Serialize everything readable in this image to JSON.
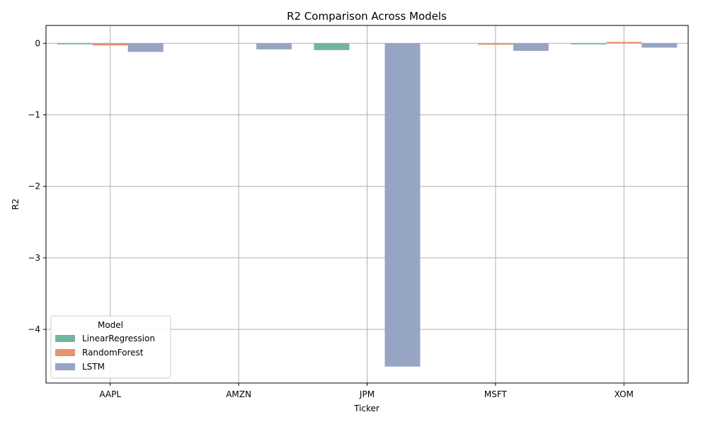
{
  "chart_data": {
    "type": "bar",
    "title": "R2 Comparison Across Models",
    "xlabel": "Ticker",
    "ylabel": "R2",
    "categories": [
      "AAPL",
      "AMZN",
      "JPM",
      "MSFT",
      "XOM"
    ],
    "ylim": [
      -4.75,
      0.25
    ],
    "yticks": [
      0,
      -1,
      -2,
      -3,
      -4
    ],
    "ytick_labels": [
      "0",
      "−1",
      "−2",
      "−3",
      "−4"
    ],
    "grid": true,
    "legend": {
      "title": "Model",
      "placement": "lower-left"
    },
    "series": [
      {
        "name": "LinearRegression",
        "color": "#72b59e",
        "values": [
          -0.015,
          0.0,
          -0.095,
          0.0,
          -0.015
        ]
      },
      {
        "name": "RandomForest",
        "color": "#e8926f",
        "values": [
          -0.03,
          0.0,
          0.0,
          -0.02,
          0.02
        ]
      },
      {
        "name": "LSTM",
        "color": "#96a5c3",
        "values": [
          -0.12,
          -0.085,
          -4.52,
          -0.105,
          -0.06
        ]
      }
    ]
  }
}
